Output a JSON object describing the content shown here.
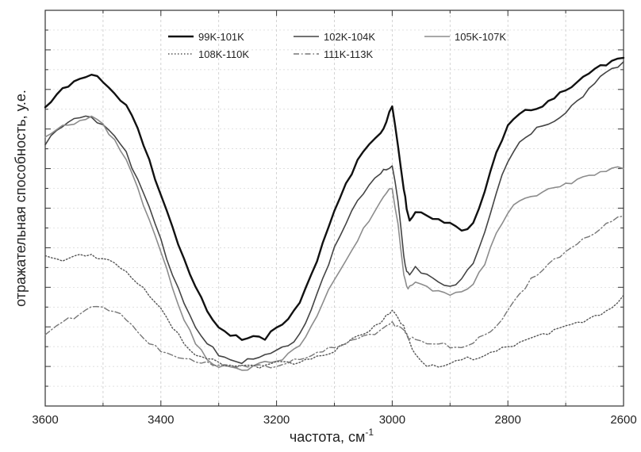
{
  "chart_data": {
    "type": "line",
    "title": "",
    "xlabel": "частота, см",
    "xlabel_sup": "-1",
    "ylabel": "отражательная способность, у.е.",
    "xlim": [
      3600,
      2600
    ],
    "x_reversed": true,
    "ylim": [
      0,
      1
    ],
    "x_ticks": [
      3600,
      3400,
      3200,
      3000,
      2800,
      2600
    ],
    "y_ticks_labeled": false,
    "grid": true,
    "legend_position": "top-center",
    "series": [
      {
        "name": "99K-101K",
        "color": "#111111",
        "style": "solid",
        "width": 2.4,
        "x": [
          3600,
          3580,
          3560,
          3540,
          3520,
          3500,
          3480,
          3460,
          3440,
          3420,
          3400,
          3380,
          3360,
          3340,
          3320,
          3300,
          3280,
          3260,
          3240,
          3220,
          3200,
          3180,
          3160,
          3140,
          3120,
          3100,
          3080,
          3060,
          3040,
          3020,
          3010,
          3000,
          2990,
          2980,
          2975,
          2970,
          2960,
          2940,
          2920,
          2900,
          2880,
          2860,
          2840,
          2820,
          2800,
          2780,
          2760,
          2740,
          2720,
          2700,
          2680,
          2660,
          2640,
          2620,
          2600
        ],
        "y": [
          0.755,
          0.79,
          0.81,
          0.83,
          0.84,
          0.82,
          0.79,
          0.76,
          0.7,
          0.62,
          0.53,
          0.45,
          0.37,
          0.3,
          0.24,
          0.2,
          0.18,
          0.17,
          0.18,
          0.17,
          0.2,
          0.22,
          0.26,
          0.33,
          0.41,
          0.49,
          0.56,
          0.62,
          0.66,
          0.69,
          0.72,
          0.76,
          0.66,
          0.55,
          0.5,
          0.47,
          0.49,
          0.48,
          0.47,
          0.46,
          0.44,
          0.46,
          0.54,
          0.64,
          0.71,
          0.74,
          0.75,
          0.76,
          0.78,
          0.8,
          0.82,
          0.84,
          0.86,
          0.87,
          0.88
        ]
      },
      {
        "name": "102K-104K",
        "color": "#444444",
        "style": "solid",
        "width": 1.6,
        "x": [
          3600,
          3580,
          3560,
          3540,
          3520,
          3500,
          3480,
          3460,
          3440,
          3420,
          3400,
          3380,
          3360,
          3340,
          3320,
          3300,
          3280,
          3260,
          3240,
          3220,
          3200,
          3180,
          3160,
          3140,
          3120,
          3100,
          3080,
          3060,
          3040,
          3020,
          3010,
          3000,
          2990,
          2980,
          2975,
          2970,
          2960,
          2940,
          2920,
          2900,
          2880,
          2860,
          2840,
          2820,
          2800,
          2780,
          2760,
          2740,
          2720,
          2700,
          2680,
          2660,
          2640,
          2620,
          2600
        ],
        "y": [
          0.66,
          0.7,
          0.72,
          0.73,
          0.73,
          0.71,
          0.68,
          0.64,
          0.57,
          0.5,
          0.42,
          0.33,
          0.26,
          0.2,
          0.16,
          0.13,
          0.12,
          0.11,
          0.12,
          0.13,
          0.14,
          0.15,
          0.18,
          0.24,
          0.32,
          0.4,
          0.46,
          0.52,
          0.56,
          0.59,
          0.6,
          0.61,
          0.52,
          0.38,
          0.34,
          0.33,
          0.35,
          0.33,
          0.31,
          0.3,
          0.32,
          0.36,
          0.44,
          0.54,
          0.62,
          0.67,
          0.69,
          0.71,
          0.72,
          0.74,
          0.77,
          0.8,
          0.83,
          0.85,
          0.87
        ]
      },
      {
        "name": "105K-107K",
        "color": "#8c8c8c",
        "style": "solid",
        "width": 1.6,
        "x": [
          3600,
          3580,
          3560,
          3540,
          3520,
          3500,
          3480,
          3460,
          3440,
          3420,
          3400,
          3380,
          3360,
          3340,
          3320,
          3300,
          3280,
          3260,
          3240,
          3220,
          3200,
          3180,
          3160,
          3140,
          3120,
          3100,
          3080,
          3060,
          3040,
          3020,
          3010,
          3000,
          2990,
          2980,
          2975,
          2970,
          2960,
          2940,
          2920,
          2900,
          2880,
          2860,
          2840,
          2820,
          2800,
          2780,
          2760,
          2740,
          2720,
          2700,
          2680,
          2660,
          2640,
          2620,
          2600
        ],
        "y": [
          0.68,
          0.7,
          0.71,
          0.72,
          0.73,
          0.71,
          0.67,
          0.62,
          0.55,
          0.47,
          0.39,
          0.3,
          0.22,
          0.16,
          0.12,
          0.1,
          0.1,
          0.09,
          0.1,
          0.11,
          0.11,
          0.13,
          0.15,
          0.2,
          0.26,
          0.32,
          0.37,
          0.42,
          0.47,
          0.52,
          0.54,
          0.55,
          0.46,
          0.33,
          0.3,
          0.3,
          0.31,
          0.3,
          0.29,
          0.28,
          0.29,
          0.31,
          0.36,
          0.44,
          0.49,
          0.52,
          0.53,
          0.54,
          0.55,
          0.56,
          0.57,
          0.58,
          0.59,
          0.6,
          0.6
        ]
      },
      {
        "name": "108K-110K",
        "color": "#555555",
        "style": "dotted",
        "width": 1.4,
        "x": [
          3600,
          3580,
          3560,
          3540,
          3520,
          3500,
          3480,
          3460,
          3440,
          3420,
          3400,
          3380,
          3360,
          3340,
          3320,
          3300,
          3280,
          3260,
          3240,
          3220,
          3200,
          3180,
          3160,
          3140,
          3120,
          3100,
          3080,
          3060,
          3040,
          3020,
          3010,
          3000,
          2990,
          2980,
          2975,
          2970,
          2960,
          2940,
          2920,
          2900,
          2880,
          2860,
          2840,
          2820,
          2800,
          2780,
          2760,
          2740,
          2720,
          2700,
          2680,
          2660,
          2640,
          2620,
          2600
        ],
        "y": [
          0.38,
          0.37,
          0.37,
          0.38,
          0.38,
          0.37,
          0.36,
          0.34,
          0.31,
          0.28,
          0.25,
          0.2,
          0.16,
          0.13,
          0.12,
          0.11,
          0.1,
          0.1,
          0.1,
          0.1,
          0.11,
          0.11,
          0.11,
          0.12,
          0.13,
          0.14,
          0.16,
          0.18,
          0.19,
          0.21,
          0.23,
          0.24,
          0.22,
          0.2,
          0.18,
          0.16,
          0.13,
          0.1,
          0.1,
          0.11,
          0.12,
          0.12,
          0.13,
          0.14,
          0.15,
          0.16,
          0.17,
          0.18,
          0.19,
          0.2,
          0.21,
          0.22,
          0.23,
          0.25,
          0.28
        ]
      },
      {
        "name": "111K-113K",
        "color": "#777777",
        "style": "dashdot",
        "width": 1.4,
        "x": [
          3600,
          3580,
          3560,
          3540,
          3520,
          3500,
          3480,
          3460,
          3440,
          3420,
          3400,
          3380,
          3360,
          3340,
          3320,
          3300,
          3280,
          3260,
          3240,
          3220,
          3200,
          3180,
          3160,
          3140,
          3120,
          3100,
          3080,
          3060,
          3040,
          3020,
          3010,
          3000,
          2990,
          2980,
          2975,
          2970,
          2960,
          2940,
          2920,
          2900,
          2880,
          2860,
          2840,
          2820,
          2800,
          2780,
          2760,
          2740,
          2720,
          2700,
          2680,
          2660,
          2640,
          2620,
          2600
        ],
        "y": [
          0.18,
          0.2,
          0.22,
          0.23,
          0.25,
          0.25,
          0.24,
          0.22,
          0.19,
          0.16,
          0.14,
          0.13,
          0.12,
          0.11,
          0.11,
          0.1,
          0.1,
          0.1,
          0.1,
          0.1,
          0.1,
          0.11,
          0.12,
          0.13,
          0.14,
          0.15,
          0.16,
          0.17,
          0.18,
          0.19,
          0.2,
          0.21,
          0.2,
          0.19,
          0.18,
          0.17,
          0.17,
          0.16,
          0.16,
          0.15,
          0.15,
          0.16,
          0.18,
          0.2,
          0.24,
          0.28,
          0.32,
          0.34,
          0.37,
          0.39,
          0.41,
          0.43,
          0.45,
          0.47,
          0.48
        ]
      }
    ]
  }
}
